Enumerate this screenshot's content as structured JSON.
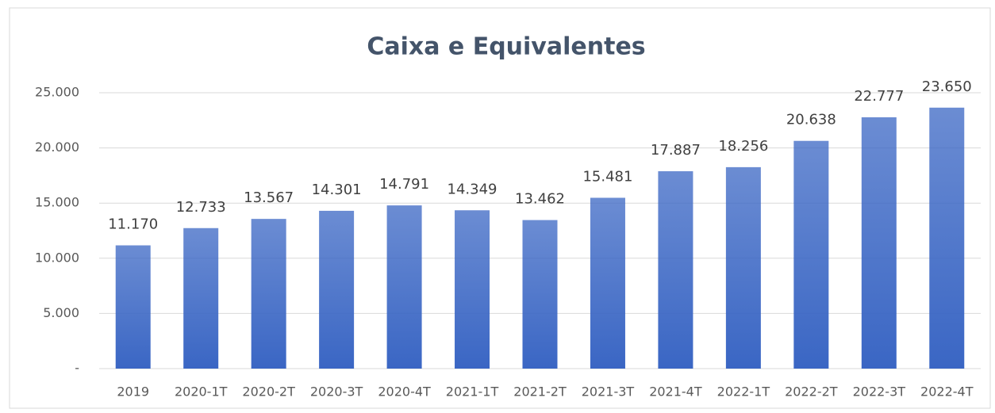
{
  "chart_data": {
    "type": "bar",
    "title": "Caixa e Equivalentes",
    "categories": [
      "2019",
      "2020-1T",
      "2020-2T",
      "2020-3T",
      "2020-4T",
      "2021-1T",
      "2021-2T",
      "2021-3T",
      "2021-4T",
      "2022-1T",
      "2022-2T",
      "2022-3T",
      "2022-4T"
    ],
    "values": [
      11170,
      12733,
      13567,
      14301,
      14791,
      14349,
      13462,
      15481,
      17887,
      18256,
      20638,
      22777,
      23650
    ],
    "value_labels": [
      "11.170",
      "12.733",
      "13.567",
      "14.301",
      "14.791",
      "14.349",
      "13.462",
      "15.481",
      "17.887",
      "18.256",
      "20.638",
      "22.777",
      "23.650"
    ],
    "color": "#3a66c4",
    "ylim": [
      0,
      25000
    ],
    "yticks": [
      {
        "value": 0,
        "label": "-"
      },
      {
        "value": 5000,
        "label": "5.000"
      },
      {
        "value": 10000,
        "label": "10.000"
      },
      {
        "value": 15000,
        "label": "15.000"
      },
      {
        "value": 20000,
        "label": "20.000"
      },
      {
        "value": 25000,
        "label": "25.000"
      }
    ],
    "grid": true
  }
}
